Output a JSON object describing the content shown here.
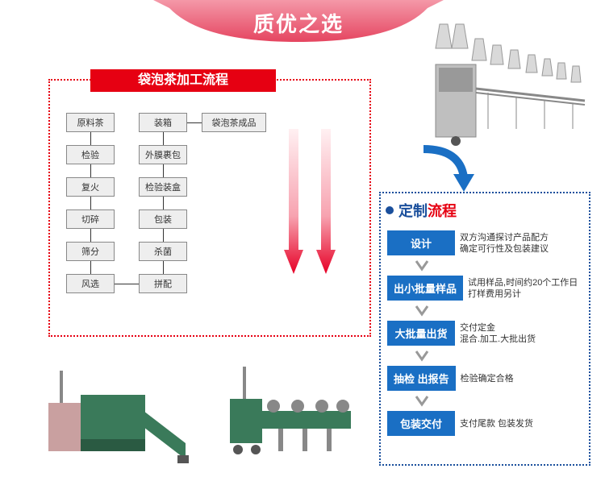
{
  "banner": {
    "title": "质优之选",
    "fill_top": "#f498a8",
    "fill_bot": "#e54560",
    "text_color": "#ffffff"
  },
  "red_panel": {
    "title": "袋泡茶加工流程",
    "bg": "#e60012",
    "border": "#e60012",
    "col1": [
      "原料茶",
      "检验",
      "复火",
      "切碎",
      "筛分",
      "风选"
    ],
    "col2": [
      "装箱",
      "外膜裹包",
      "检验装盒",
      "包装",
      "杀菌",
      "拼配"
    ],
    "end": "袋泡茶成品"
  },
  "grad_arrows": {
    "top": "#fff0f2",
    "mid": "#f7a3b0",
    "bot": "#e60026"
  },
  "blue_panel": {
    "title_a": "定制",
    "title_b": "流程",
    "border": "#1a4f9c",
    "dot": "#1a4f9c",
    "btn_bg": "#1a6fc4",
    "steps": [
      {
        "label": "设计",
        "desc": "双方沟通探讨产品配方\n确定可行性及包装建议"
      },
      {
        "label": "出小批量样品",
        "desc": "试用样品,时间约20个工作日\n打样费用另计"
      },
      {
        "label": "大批量出货",
        "desc": "交付定金\n混合.加工.大批出货"
      },
      {
        "label": "抽检 出报告",
        "desc": "检验确定合格"
      },
      {
        "label": "包装交付",
        "desc": "支付尾款 包装发货"
      }
    ]
  },
  "machines": {
    "top_body": "#bfbfbf",
    "top_hopper": "#d9d9d9",
    "bl_body": "#3a7a5a",
    "bl_tank": "#c9a0a0",
    "br_body": "#3a7a5a",
    "br_arm": "#888"
  }
}
